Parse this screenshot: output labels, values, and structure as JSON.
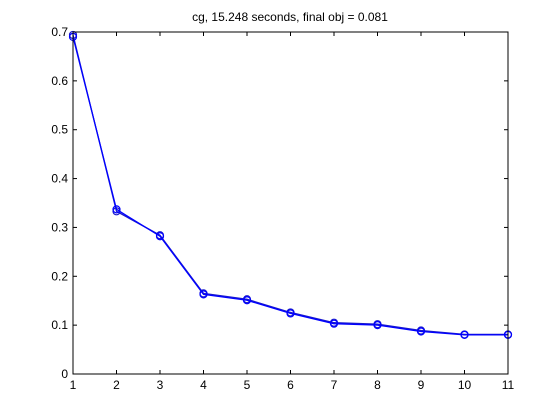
{
  "chart_data": {
    "type": "line",
    "title": "cg, 15.248 seconds, final obj = 0.081",
    "xlabel": "",
    "ylabel": "",
    "xlim": [
      1,
      11
    ],
    "ylim": [
      0,
      0.7
    ],
    "xticks": [
      1,
      2,
      3,
      4,
      5,
      6,
      7,
      8,
      9,
      10,
      11
    ],
    "yticks": [
      0,
      0.1,
      0.2,
      0.3,
      0.4,
      0.5,
      0.6,
      0.7
    ],
    "grid": false,
    "legend": "none",
    "marker": "circle",
    "series": [
      {
        "color": "#1a1acc",
        "x": [
          1,
          2,
          3,
          4,
          5,
          6,
          7,
          8,
          9,
          10,
          11
        ],
        "y": [
          0.694,
          0.333,
          0.284,
          0.165,
          0.153,
          0.126,
          0.105,
          0.102,
          0.089,
          0.081,
          0.081
        ]
      },
      {
        "color": "#0000ff",
        "x": [
          1,
          2,
          3,
          4,
          5,
          6,
          7,
          8,
          9,
          10,
          11
        ],
        "y": [
          0.69,
          0.337,
          0.282,
          0.163,
          0.151,
          0.124,
          0.103,
          0.1,
          0.087,
          0.08,
          0.08
        ]
      }
    ]
  }
}
